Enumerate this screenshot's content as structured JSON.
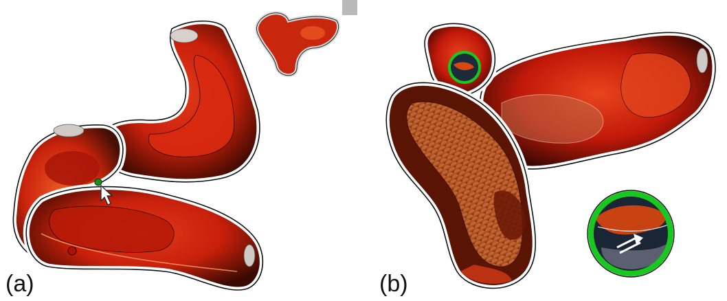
{
  "figure": {
    "panel_a": {
      "label": "(a)"
    },
    "panel_b": {
      "label": "(b)"
    }
  },
  "colors": {
    "deep_red": "#c2180a",
    "orange_red": "#e9461b",
    "dark_rim": "#3a0a02",
    "highlight_green": "#18c81e",
    "outline": "#111111"
  },
  "icons": [
    "mouse-cursor-icon",
    "magnifier-lens",
    "arrow-icon"
  ]
}
